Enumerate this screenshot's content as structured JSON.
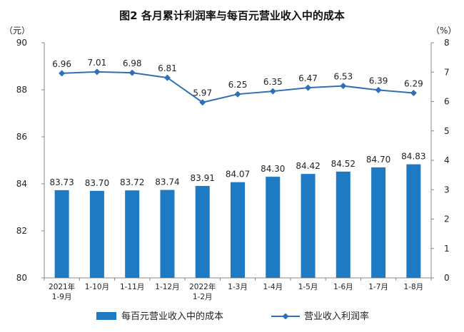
{
  "chart_data": {
    "type": "bar+line",
    "title": "图2  各月累计利润率与每百元营业收入中的成本",
    "left_unit": "（元）",
    "right_unit": "（%）",
    "categories": [
      [
        "2021年",
        "1-9月"
      ],
      [
        "1-10月"
      ],
      [
        "1-11月"
      ],
      [
        "1-12月"
      ],
      [
        "2022年",
        "1-2月"
      ],
      [
        "1-3月"
      ],
      [
        "1-4月"
      ],
      [
        "1-5月"
      ],
      [
        "1-6月"
      ],
      [
        "1-7月"
      ],
      [
        "1-8月"
      ]
    ],
    "series": [
      {
        "name": "每百元营业收入中的成本",
        "type": "bar",
        "axis": "left",
        "color": "#1f7ac4",
        "values": [
          83.73,
          83.7,
          83.72,
          83.74,
          83.91,
          84.07,
          84.3,
          84.42,
          84.52,
          84.7,
          84.83
        ],
        "labels": [
          "83.73",
          "83.70",
          "83.72",
          "83.74",
          "83.91",
          "84.07",
          "84.30",
          "84.42",
          "84.52",
          "84.70",
          "84.83"
        ]
      },
      {
        "name": "营业收入利润率",
        "type": "line",
        "axis": "right",
        "color": "#2f6fb5",
        "values": [
          6.96,
          7.01,
          6.98,
          6.81,
          5.97,
          6.25,
          6.35,
          6.47,
          6.53,
          6.39,
          6.29
        ],
        "labels": [
          "6.96",
          "7.01",
          "6.98",
          "6.81",
          "5.97",
          "6.25",
          "6.35",
          "6.47",
          "6.53",
          "6.39",
          "6.29"
        ]
      }
    ],
    "left_axis": {
      "min": 80,
      "max": 90,
      "ticks": [
        "80",
        "82",
        "84",
        "86",
        "88",
        "90"
      ]
    },
    "right_axis": {
      "min": 0,
      "max": 8,
      "ticks": [
        "0",
        "1",
        "2",
        "3",
        "4",
        "5",
        "6",
        "7",
        "8"
      ]
    },
    "grid": false,
    "legend_position": "bottom"
  }
}
